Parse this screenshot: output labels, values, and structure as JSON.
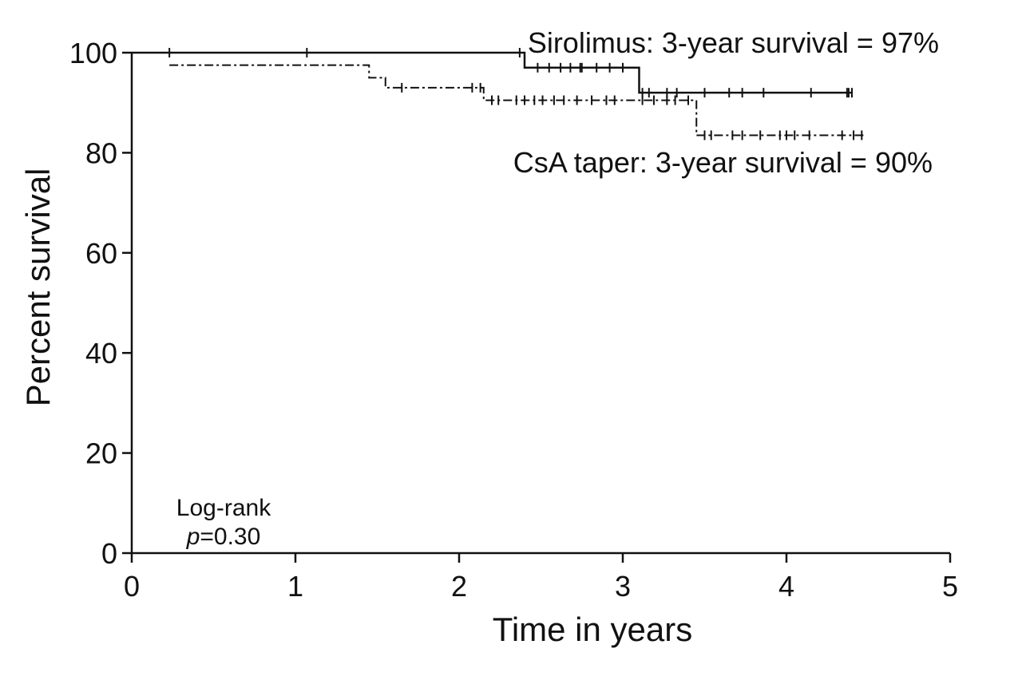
{
  "chart_data": {
    "type": "line",
    "title": "",
    "xlabel": "Time in years",
    "ylabel": "Percent survival",
    "xlim": [
      0,
      5
    ],
    "ylim": [
      0,
      100
    ],
    "x_ticks": [
      "0",
      "1",
      "2",
      "3",
      "4",
      "5"
    ],
    "y_ticks": [
      "0",
      "20",
      "40",
      "60",
      "80",
      "100"
    ],
    "grid": false,
    "series": [
      {
        "name": "Sirolimus",
        "style": "solid",
        "color": "#111111",
        "steps": [
          [
            0,
            100
          ],
          [
            2.4,
            97
          ],
          [
            3.1,
            92
          ],
          [
            4.4,
            92
          ]
        ],
        "censored": [
          [
            0.23,
            100
          ],
          [
            1.07,
            100
          ],
          [
            2.37,
            100
          ],
          [
            2.48,
            97
          ],
          [
            2.55,
            97
          ],
          [
            2.62,
            97
          ],
          [
            2.68,
            97
          ],
          [
            2.74,
            97
          ],
          [
            2.75,
            97
          ],
          [
            2.84,
            97
          ],
          [
            2.92,
            97
          ],
          [
            3.0,
            97
          ],
          [
            3.12,
            92
          ],
          [
            3.16,
            92
          ],
          [
            3.27,
            92
          ],
          [
            3.33,
            92
          ],
          [
            3.5,
            92
          ],
          [
            3.65,
            92
          ],
          [
            3.73,
            92
          ],
          [
            3.86,
            92
          ],
          [
            4.15,
            92
          ],
          [
            4.37,
            92
          ],
          [
            4.38,
            92
          ],
          [
            4.4,
            92
          ]
        ]
      },
      {
        "name": "CsA taper",
        "style": "dashdot",
        "color": "#111111",
        "steps": [
          [
            0.23,
            97.5
          ],
          [
            1.45,
            95
          ],
          [
            1.55,
            93
          ],
          [
            2.15,
            90.5
          ],
          [
            3.45,
            83.5
          ],
          [
            4.48,
            83.5
          ]
        ],
        "censored": [
          [
            1.65,
            93
          ],
          [
            2.08,
            93
          ],
          [
            2.13,
            93
          ],
          [
            2.2,
            90.5
          ],
          [
            2.24,
            90.5
          ],
          [
            2.35,
            90.5
          ],
          [
            2.4,
            90.5
          ],
          [
            2.46,
            90.5
          ],
          [
            2.51,
            90.5
          ],
          [
            2.58,
            90.5
          ],
          [
            2.64,
            90.5
          ],
          [
            2.72,
            90.5
          ],
          [
            2.81,
            90.5
          ],
          [
            2.9,
            90.5
          ],
          [
            2.95,
            90.5
          ],
          [
            3.12,
            90.5
          ],
          [
            3.19,
            90.5
          ],
          [
            3.27,
            90.5
          ],
          [
            3.32,
            90.5
          ],
          [
            3.4,
            90.5
          ],
          [
            3.5,
            83.5
          ],
          [
            3.54,
            83.5
          ],
          [
            3.67,
            83.5
          ],
          [
            3.73,
            83.5
          ],
          [
            3.84,
            83.5
          ],
          [
            3.96,
            83.5
          ],
          [
            4.0,
            83.5
          ],
          [
            4.05,
            83.5
          ],
          [
            4.14,
            83.5
          ],
          [
            4.34,
            83.5
          ],
          [
            4.41,
            83.5
          ],
          [
            4.46,
            83.5
          ]
        ]
      }
    ],
    "annotations": {
      "sirolimus_label": "Sirolimus: 3-year survival = 97%",
      "csa_label": "CsA taper: 3-year survival = 90%",
      "logrank_label": "Log-rank",
      "p_symbol": "p",
      "p_value": "=0.30"
    }
  }
}
